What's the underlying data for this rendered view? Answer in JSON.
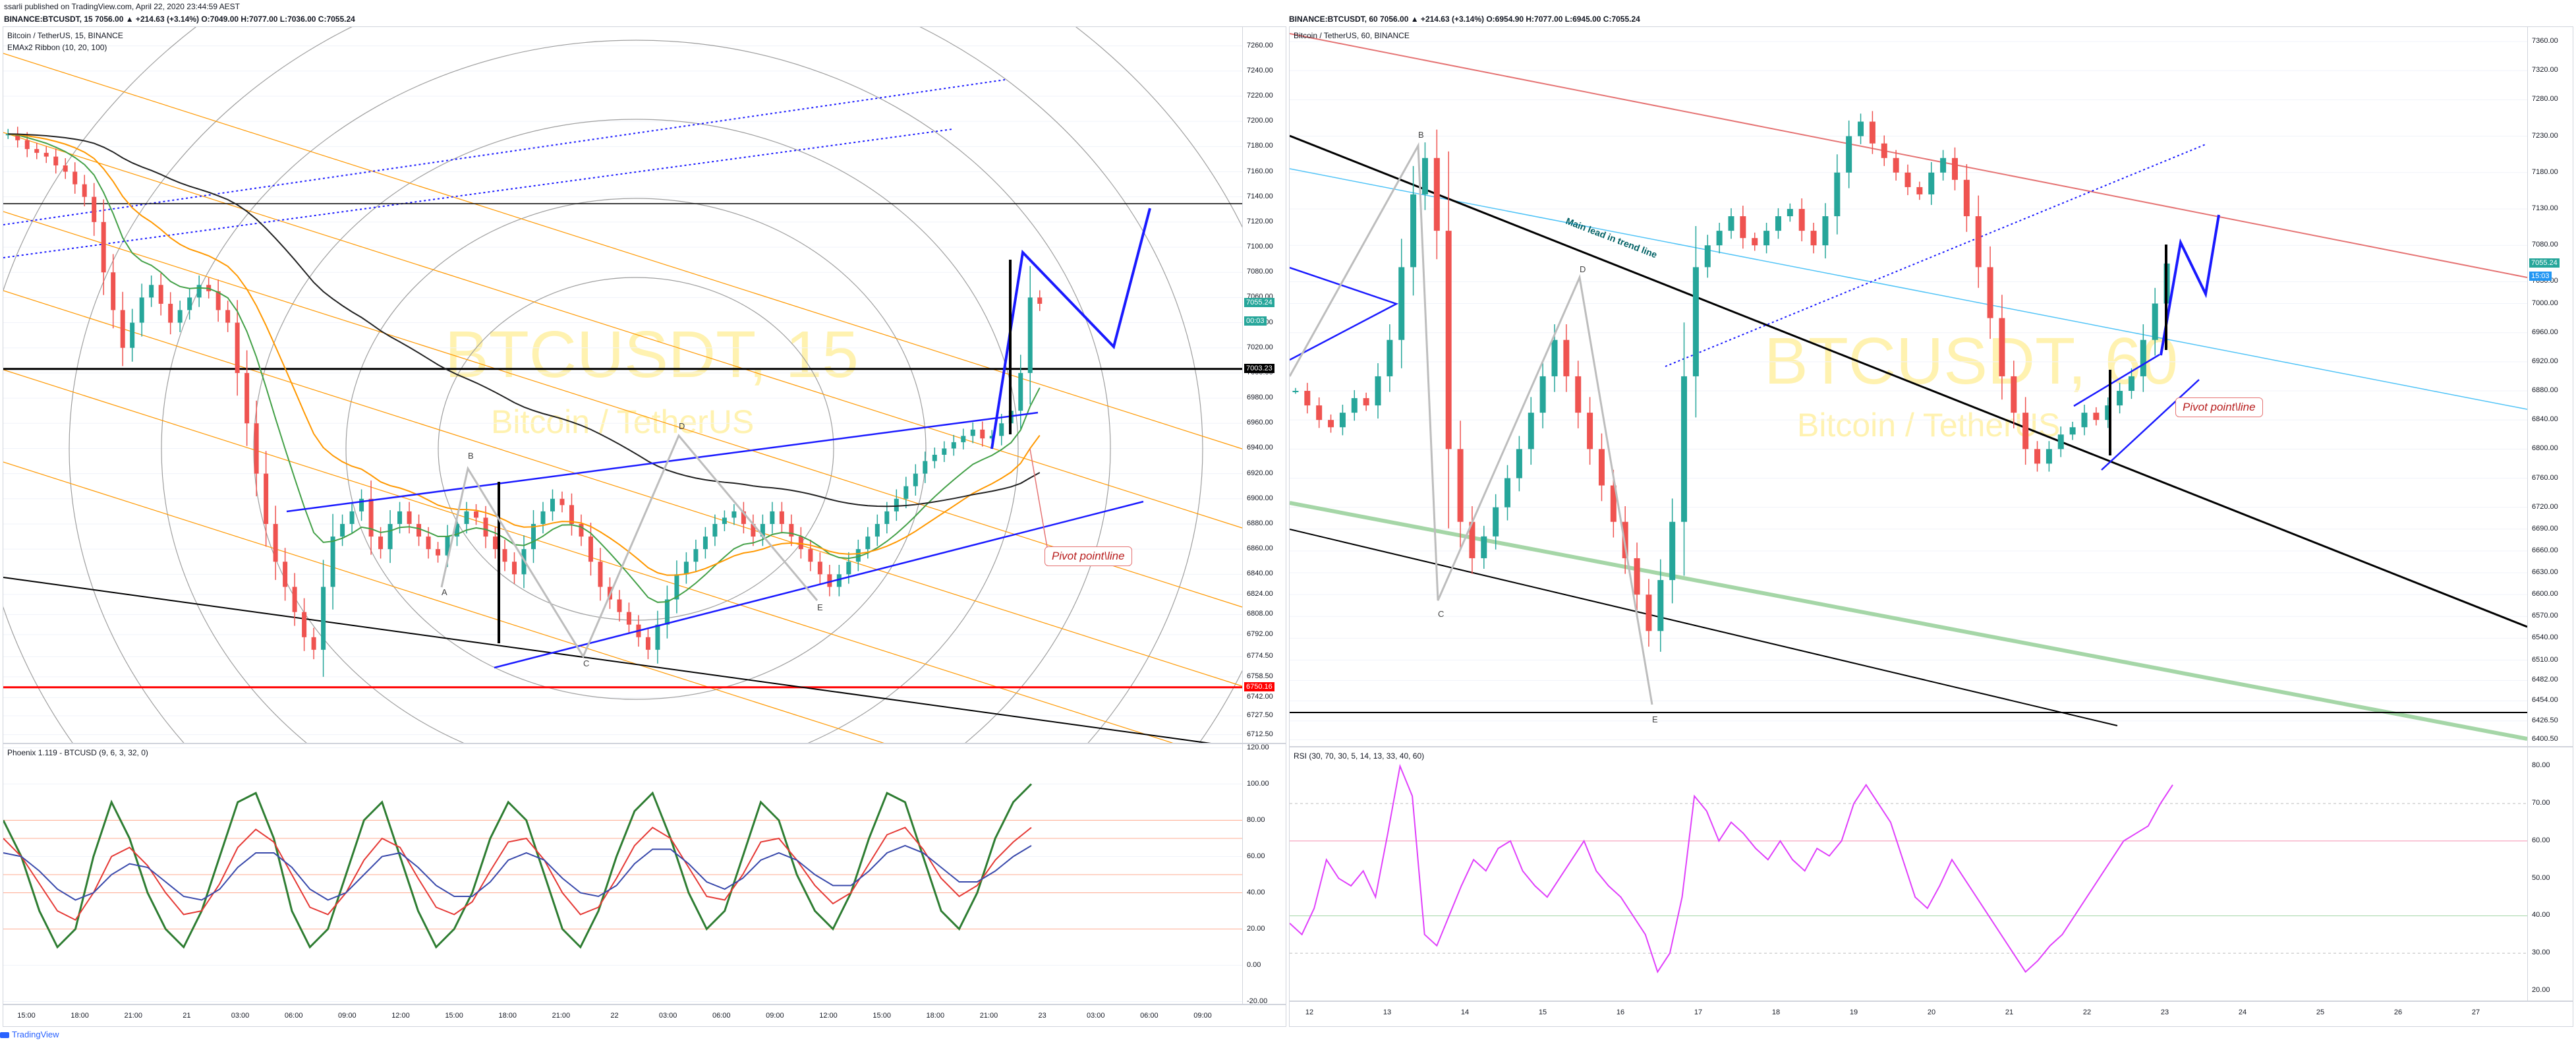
{
  "header": {
    "line1": "ssarli published on TradingView.com, April 22, 2020 23:44:59 AEST",
    "left_symbol_line": "BINANCE:BTCUSDT, 15  7056.00 ▲ +214.63 (+3.14%) O:7049.00 H:7077.00 L:7036.00 C:7055.24",
    "right_symbol_line": "BINANCE:BTCUSDT, 60  7056.00 ▲ +214.63 (+3.14%) O:6954.90 H:7077.00 L:6945.00 C:7055.24"
  },
  "left": {
    "title": "Bitcoin / TetherUS, 15, BINANCE",
    "indicator": "EMAx2 Ribbon (10, 20, 100)",
    "watermark_symbol": "BTCUSDT, 15",
    "watermark_name": "Bitcoin / TetherUS",
    "osc_title": "Phoenix 1.119 - BTCUSD (9, 6, 3, 32, 0)",
    "note": "Pivot point\\line",
    "wave_labels": [
      "A",
      "B",
      "C",
      "D",
      "E"
    ]
  },
  "right": {
    "title": "Bitcoin / TetherUS, 60, BINANCE",
    "watermark_symbol": "BTCUSDT, 60",
    "watermark_name": "Bitcoin / TetherUS",
    "rsi_title": "RSI (30, 70, 30, 5, 14, 13, 33, 40, 60)",
    "note": "Pivot point\\line",
    "trendline_text": "Main lead in trend line",
    "wave_labels": [
      "B",
      "C",
      "D",
      "E"
    ]
  },
  "footer": {
    "brand": "TradingView"
  },
  "colors": {
    "up": "#26a69a",
    "down": "#ef5350",
    "blue": "#1a1aff",
    "orange": "#ff9800",
    "magenta": "#e040fb",
    "red": "#ff0000"
  },
  "chart_data": [
    {
      "type": "candlestick",
      "title": "Bitcoin / TetherUS, 15, BINANCE",
      "x_tick_labels": [
        "15:00",
        "18:00",
        "21:00",
        "21",
        "03:00",
        "06:00",
        "09:00",
        "12:00",
        "15:00",
        "18:00",
        "21:00",
        "22",
        "03:00",
        "06:00",
        "09:00",
        "12:00",
        "15:00",
        "18:00",
        "21:00",
        "23",
        "03:00",
        "06:00",
        "09:00"
      ],
      "y_tick_labels": [
        "7260.00",
        "7240.00",
        "7220.00",
        "7200.00",
        "7180.00",
        "7160.00",
        "7140.00",
        "7120.00",
        "7100.00",
        "7080.00",
        "7060.00",
        "7040.00",
        "7020.00",
        "7000.00",
        "6980.00",
        "6960.00",
        "6940.00",
        "6920.00",
        "6900.00",
        "6880.00",
        "6860.00",
        "6840.00",
        "6824.00",
        "6808.00",
        "6792.00",
        "6774.50",
        "6758.50",
        "6742.00",
        "6727.50",
        "6712.50"
      ],
      "ylim": [
        6705,
        7275
      ],
      "price_tags": [
        {
          "label": "7055.24",
          "value": 7055.24,
          "color": "#26a69a"
        },
        {
          "label": "00:03",
          "value": 7041,
          "color": "#26a69a"
        },
        {
          "label": "7003.23",
          "value": 7003.23,
          "color": "#000000"
        },
        {
          "label": "6750.16",
          "value": 6750.16,
          "color": "#ff0000"
        }
      ],
      "close": [
        7190,
        7185,
        7178,
        7175,
        7172,
        7165,
        7160,
        7150,
        7140,
        7120,
        7080,
        7050,
        7020,
        7040,
        7060,
        7070,
        7055,
        7040,
        7050,
        7060,
        7070,
        7065,
        7050,
        7040,
        7000,
        6960,
        6920,
        6880,
        6850,
        6830,
        6810,
        6790,
        6780,
        6830,
        6870,
        6880,
        6890,
        6900,
        6870,
        6860,
        6880,
        6890,
        6880,
        6870,
        6860,
        6855,
        6870,
        6880,
        6890,
        6885,
        6870,
        6860,
        6850,
        6840,
        6860,
        6880,
        6890,
        6900,
        6895,
        6880,
        6870,
        6850,
        6830,
        6820,
        6810,
        6800,
        6790,
        6780,
        6800,
        6820,
        6840,
        6850,
        6860,
        6870,
        6880,
        6885,
        6890,
        6880,
        6870,
        6880,
        6890,
        6880,
        6870,
        6860,
        6850,
        6840,
        6830,
        6840,
        6850,
        6860,
        6870,
        6880,
        6890,
        6900,
        6910,
        6920,
        6930,
        6935,
        6940,
        6945,
        6950,
        6955,
        6948,
        6950,
        6960,
        6970,
        7000,
        7060,
        7055
      ]
    },
    {
      "type": "line",
      "title": "Phoenix 1.119 - BTCUSD (9, 6, 3, 32, 0)",
      "y_tick_labels": [
        "120.00",
        "100.00",
        "80.00",
        "60.00",
        "40.00",
        "20.00",
        "0.00",
        "-20.00"
      ],
      "ylim": [
        -22,
        122
      ],
      "series": [
        {
          "name": "fast",
          "color": "#2e7d32",
          "values": [
            80,
            60,
            30,
            10,
            20,
            60,
            90,
            70,
            40,
            20,
            10,
            30,
            60,
            90,
            95,
            70,
            30,
            10,
            20,
            50,
            80,
            90,
            60,
            30,
            10,
            20,
            40,
            70,
            90,
            80,
            50,
            20,
            10,
            30,
            60,
            85,
            95,
            70,
            40,
            20,
            30,
            60,
            90,
            80,
            50,
            30,
            20,
            40,
            70,
            95,
            90,
            60,
            30,
            20,
            40,
            70,
            90,
            100
          ]
        },
        {
          "name": "slow",
          "color": "#e53935",
          "values": [
            70,
            60,
            45,
            30,
            25,
            40,
            60,
            65,
            55,
            40,
            28,
            30,
            45,
            65,
            75,
            68,
            50,
            32,
            28,
            40,
            58,
            70,
            65,
            48,
            32,
            28,
            35,
            52,
            68,
            70,
            58,
            40,
            28,
            32,
            48,
            66,
            76,
            70,
            54,
            38,
            36,
            50,
            68,
            70,
            58,
            44,
            34,
            40,
            56,
            72,
            76,
            64,
            48,
            38,
            44,
            58,
            68,
            76
          ]
        },
        {
          "name": "signal",
          "color": "#3949ab",
          "values": [
            62,
            60,
            52,
            42,
            36,
            40,
            50,
            56,
            54,
            46,
            38,
            36,
            42,
            54,
            62,
            62,
            54,
            42,
            36,
            40,
            50,
            60,
            62,
            54,
            44,
            38,
            38,
            46,
            58,
            62,
            58,
            48,
            40,
            38,
            44,
            56,
            64,
            64,
            56,
            46,
            42,
            48,
            58,
            62,
            58,
            50,
            44,
            44,
            52,
            62,
            66,
            62,
            54,
            46,
            46,
            52,
            60,
            66
          ]
        }
      ]
    },
    {
      "type": "candlestick",
      "title": "Bitcoin / TetherUS, 60, BINANCE",
      "x_tick_labels": [
        "12",
        "13",
        "14",
        "15",
        "16",
        "17",
        "18",
        "19",
        "20",
        "21",
        "22",
        "23",
        "24",
        "25",
        "26",
        "27"
      ],
      "y_tick_labels": [
        "7360.00",
        "7320.00",
        "7280.00",
        "7230.00",
        "7180.00",
        "7130.00",
        "7080.00",
        "7030.00",
        "7000.00",
        "6960.00",
        "6920.00",
        "6880.00",
        "6840.00",
        "6800.00",
        "6760.00",
        "6720.00",
        "6690.00",
        "6660.00",
        "6630.00",
        "6600.00",
        "6570.00",
        "6540.00",
        "6510.00",
        "6482.00",
        "6454.00",
        "6426.50",
        "6400.50"
      ],
      "ylim": [
        6390,
        7380
      ],
      "price_tags": [
        {
          "label": "7055.24",
          "value": 7055.24,
          "color": "#26a69a"
        },
        {
          "label": "15:03",
          "value": 7037,
          "color": "#2196f3"
        }
      ],
      "close": [
        6880,
        6860,
        6840,
        6830,
        6850,
        6870,
        6860,
        6900,
        6950,
        7050,
        7150,
        7200,
        7100,
        6800,
        6700,
        6650,
        6680,
        6720,
        6760,
        6800,
        6850,
        6900,
        6950,
        6900,
        6850,
        6800,
        6750,
        6700,
        6650,
        6600,
        6550,
        6620,
        6700,
        6900,
        7050,
        7080,
        7100,
        7120,
        7090,
        7080,
        7100,
        7120,
        7130,
        7100,
        7080,
        7120,
        7180,
        7230,
        7250,
        7220,
        7200,
        7180,
        7160,
        7150,
        7180,
        7200,
        7170,
        7120,
        7050,
        6980,
        6900,
        6850,
        6800,
        6780,
        6800,
        6820,
        6830,
        6850,
        6840,
        6860,
        6880,
        6900,
        6950,
        7000,
        7055
      ]
    },
    {
      "type": "line",
      "title": "RSI (30, 70, 30, 5, 14, 13, 33, 40, 60)",
      "y_tick_labels": [
        "80.00",
        "70.00",
        "60.00",
        "50.00",
        "40.00",
        "30.00",
        "20.00"
      ],
      "ylim": [
        17,
        85
      ],
      "series": [
        {
          "name": "RSI",
          "color": "#e040fb",
          "values": [
            38,
            35,
            42,
            55,
            50,
            48,
            52,
            45,
            62,
            80,
            72,
            35,
            32,
            40,
            48,
            55,
            52,
            58,
            60,
            52,
            48,
            45,
            50,
            55,
            60,
            52,
            48,
            45,
            40,
            35,
            25,
            30,
            45,
            72,
            68,
            60,
            65,
            62,
            58,
            55,
            60,
            55,
            52,
            58,
            56,
            60,
            70,
            75,
            70,
            65,
            55,
            45,
            42,
            48,
            55,
            50,
            45,
            40,
            35,
            30,
            25,
            28,
            32,
            35,
            40,
            45,
            50,
            55,
            60,
            62,
            64,
            70,
            75
          ]
        }
      ]
    }
  ]
}
